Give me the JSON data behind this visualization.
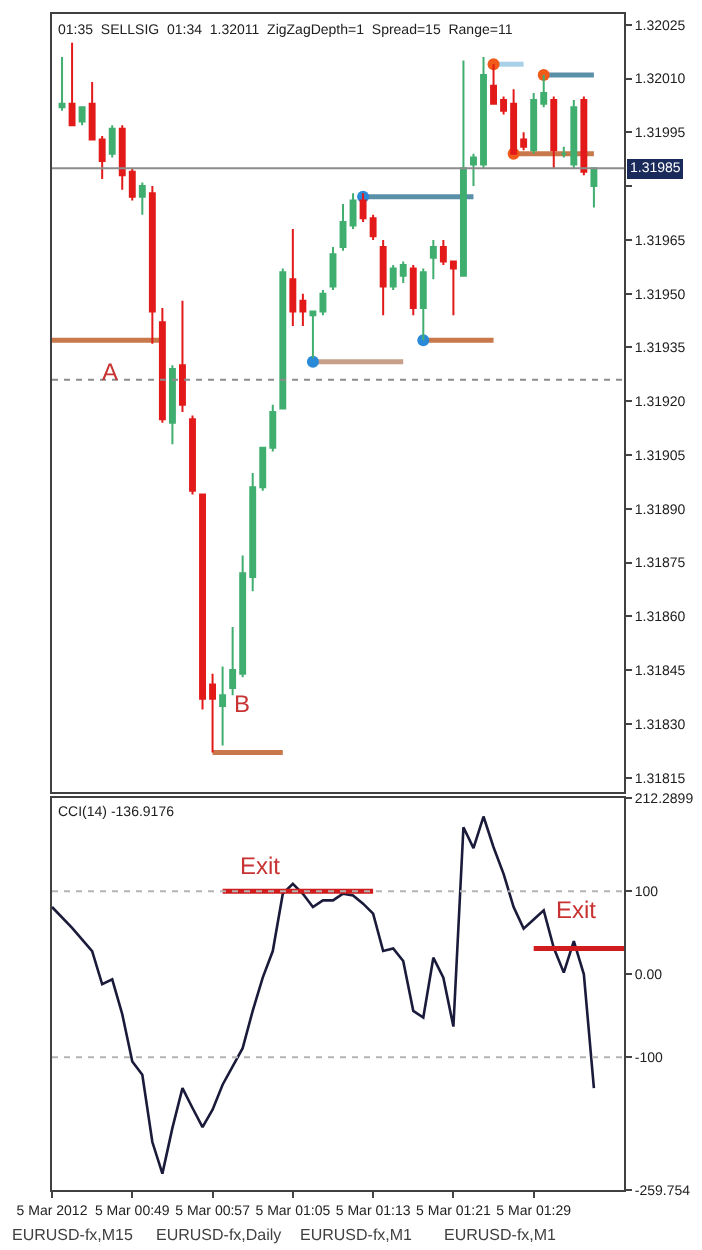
{
  "chart_data": [
    {
      "type": "candlestick",
      "title": "01:35  SELLSIG  01:34  1.32011  ZigZagDepth=1  Spread=15  Range=11",
      "series": [
        {
          "x": [
            "2012-03-05T00:42",
            "2012-03-05T00:43",
            "2012-03-05T00:44",
            "2012-03-05T00:45",
            "2012-03-05T00:46",
            "2012-03-05T00:47",
            "2012-03-05T00:48",
            "2012-03-05T00:49",
            "2012-03-05T00:50",
            "2012-03-05T00:51",
            "2012-03-05T00:52",
            "2012-03-05T00:53",
            "2012-03-05T00:54",
            "2012-03-05T00:55",
            "2012-03-05T00:56",
            "2012-03-05T00:57",
            "2012-03-05T00:58",
            "2012-03-05T00:59",
            "2012-03-05T01:00",
            "2012-03-05T01:01",
            "2012-03-05T01:02",
            "2012-03-05T01:03",
            "2012-03-05T01:04",
            "2012-03-05T01:05",
            "2012-03-05T01:06",
            "2012-03-05T01:07",
            "2012-03-05T01:08",
            "2012-03-05T01:09",
            "2012-03-05T01:10",
            "2012-03-05T01:11",
            "2012-03-05T01:12",
            "2012-03-05T01:13",
            "2012-03-05T01:14",
            "2012-03-05T01:15",
            "2012-03-05T01:16",
            "2012-03-05T01:17",
            "2012-03-05T01:18",
            "2012-03-05T01:19",
            "2012-03-05T01:20",
            "2012-03-05T01:21",
            "2012-03-05T01:22",
            "2012-03-05T01:23",
            "2012-03-05T01:24",
            "2012-03-05T01:25",
            "2012-03-05T01:26",
            "2012-03-05T01:27",
            "2012-03-05T01:28",
            "2012-03-05T01:29",
            "2012-03-05T01:30",
            "2012-03-05T01:31",
            "2012-03-05T01:32",
            "2012-03-05T01:33",
            "2012-03-05T01:34",
            "2012-03-05T01:35"
          ],
          "ohlc": [
            [
              1.32002,
              1.32016,
              1.32001,
              1.32003
            ],
            [
              1.32003,
              1.3202,
              1.31997,
              1.31997
            ],
            [
              1.31998,
              1.32002,
              1.31997,
              1.32002
            ],
            [
              1.32003,
              1.32009,
              1.31993,
              1.31993
            ],
            [
              1.31993,
              1.31994,
              1.31982,
              1.31987
            ],
            [
              1.31989,
              1.31997,
              1.31988,
              1.31996
            ],
            [
              1.31996,
              1.31997,
              1.31979,
              1.31983
            ],
            [
              1.31984,
              1.31985,
              1.31976,
              1.31977
            ],
            [
              1.31977,
              1.31981,
              1.31972,
              1.3198
            ],
            [
              1.31978,
              1.3198,
              1.31936,
              1.31945
            ],
            [
              1.31942,
              1.31946,
              1.31914,
              1.31915
            ],
            [
              1.31914,
              1.3193,
              1.31908,
              1.31929
            ],
            [
              1.3193,
              1.31948,
              1.31917,
              1.31919
            ],
            [
              1.31915,
              1.31916,
              1.31894,
              1.31895
            ],
            [
              1.31894,
              1.31894,
              1.31834,
              1.31837
            ],
            [
              1.31841,
              1.31844,
              1.31822,
              1.31837
            ],
            [
              1.31835,
              1.31846,
              1.31824,
              1.31838
            ],
            [
              1.3184,
              1.31857,
              1.31838,
              1.31845
            ],
            [
              1.31844,
              1.31877,
              1.31843,
              1.31872
            ],
            [
              1.31871,
              1.319,
              1.31867,
              1.31896
            ],
            [
              1.31896,
              1.31907,
              1.31895,
              1.31907
            ],
            [
              1.31907,
              1.31919,
              1.31906,
              1.31917
            ],
            [
              1.31918,
              1.31957,
              1.31918,
              1.31956
            ],
            [
              1.31954,
              1.31968,
              1.31941,
              1.31945
            ],
            [
              1.31948,
              1.3195,
              1.31941,
              1.31945
            ],
            [
              1.31944,
              1.31945,
              1.31932,
              1.31945
            ],
            [
              1.31945,
              1.31951,
              1.31944,
              1.3195
            ],
            [
              1.31952,
              1.31963,
              1.31951,
              1.31961
            ],
            [
              1.31963,
              1.31975,
              1.31962,
              1.3197
            ],
            [
              1.31969,
              1.31978,
              1.31968,
              1.31976
            ],
            [
              1.31976,
              1.31978,
              1.3197,
              1.31971
            ],
            [
              1.31971,
              1.31972,
              1.31965,
              1.31966
            ],
            [
              1.31963,
              1.31965,
              1.31944,
              1.31952
            ],
            [
              1.31952,
              1.31958,
              1.31951,
              1.31957
            ],
            [
              1.31955,
              1.31959,
              1.31953,
              1.31958
            ],
            [
              1.31957,
              1.31958,
              1.31944,
              1.31946
            ],
            [
              1.31946,
              1.31957,
              1.31937,
              1.31956
            ],
            [
              1.3196,
              1.31965,
              1.31954,
              1.31963
            ],
            [
              1.31963,
              1.31965,
              1.31958,
              1.31959
            ],
            [
              1.31959,
              1.31959,
              1.31944,
              1.31957
            ],
            [
              1.31955,
              1.32015,
              1.31955,
              1.31985
            ],
            [
              1.31986,
              1.31989,
              1.3198,
              1.31988
            ],
            [
              1.31986,
              1.32016,
              1.31985,
              1.32011
            ],
            [
              1.32008,
              1.32014,
              1.32003,
              1.32003
            ],
            [
              1.32004,
              1.32005,
              1.32,
              1.32001
            ],
            [
              1.32003,
              1.32007,
              1.31989,
              1.31989
            ],
            [
              1.31993,
              1.31995,
              1.3199,
              1.31991
            ],
            [
              1.3199,
              1.32006,
              1.31989,
              1.32004
            ],
            [
              1.32003,
              1.32011,
              1.32002,
              1.32006
            ],
            [
              1.32004,
              1.32005,
              1.31985,
              1.3199
            ],
            [
              1.31989,
              1.31991,
              1.31988,
              1.31989
            ],
            [
              1.31986,
              1.32004,
              1.31985,
              1.32002
            ],
            [
              1.32004,
              1.32005,
              1.31983,
              1.31984
            ],
            [
              1.3198,
              1.31985,
              1.31974,
              1.31985
            ]
          ],
          "colors": [
            "#3fae6f",
            "#e31a1a",
            "#3fae6f",
            "#e31a1a",
            "#e31a1a",
            "#3fae6f",
            "#e31a1a",
            "#e31a1a",
            "#3fae6f",
            "#e31a1a",
            "#e31a1a",
            "#3fae6f",
            "#e31a1a",
            "#e31a1a",
            "#e31a1a",
            "#e31a1a",
            "#3fae6f",
            "#3fae6f",
            "#3fae6f",
            "#3fae6f",
            "#3fae6f",
            "#3fae6f",
            "#3fae6f",
            "#e31a1a",
            "#e31a1a",
            "#3fae6f",
            "#3fae6f",
            "#3fae6f",
            "#3fae6f",
            "#3fae6f",
            "#e31a1a",
            "#e31a1a",
            "#e31a1a",
            "#3fae6f",
            "#3fae6f",
            "#e31a1a",
            "#3fae6f",
            "#3fae6f",
            "#e31a1a",
            "#e31a1a",
            "#3fae6f",
            "#3fae6f",
            "#3fae6f",
            "#e31a1a",
            "#e31a1a",
            "#e31a1a",
            "#e31a1a",
            "#3fae6f",
            "#3fae6f",
            "#e31a1a",
            "#3fae6f",
            "#3fae6f",
            "#e31a1a",
            "#3fae6f"
          ]
        },
        {
          "type": "line",
          "color": "#c8784a",
          "x": [
            "2012-03-05T00:41",
            "2012-03-05T00:52"
          ],
          "values": [
            1.31937,
            1.31937
          ]
        },
        {
          "type": "line",
          "color": "#c8784a",
          "x": [
            "2012-03-05T00:57",
            "2012-03-05T01:04"
          ],
          "values": [
            1.31822,
            1.31822
          ]
        },
        {
          "type": "line",
          "color": "#c8a08a",
          "x": [
            "2012-03-05T01:07",
            "2012-03-05T01:16"
          ],
          "values": [
            1.31931,
            1.31931
          ]
        },
        {
          "type": "line",
          "color": "#c8784a",
          "x": [
            "2012-03-05T01:18",
            "2012-03-05T01:25"
          ],
          "values": [
            1.31937,
            1.31937
          ]
        },
        {
          "type": "line",
          "color": "#5a8fa8",
          "x": [
            "2012-03-05T01:12",
            "2012-03-05T01:23"
          ],
          "values": [
            1.31977,
            1.31977
          ]
        },
        {
          "type": "line",
          "color": "#a8d0e8",
          "x": [
            "2012-03-05T01:25",
            "2012-03-05T01:28"
          ],
          "values": [
            1.32014,
            1.32014
          ]
        },
        {
          "type": "line",
          "color": "#5a8fa8",
          "x": [
            "2012-03-05T01:30",
            "2012-03-05T01:35"
          ],
          "values": [
            1.32011,
            1.32011
          ]
        },
        {
          "type": "line",
          "color": "#c8784a",
          "x": [
            "2012-03-05T01:27",
            "2012-03-05T01:35"
          ],
          "values": [
            1.31989,
            1.31989
          ]
        },
        {
          "type": "scatter",
          "color": "#2a8ad8",
          "x": [
            "2012-03-05T01:07",
            "2012-03-05T01:18",
            "2012-03-05T01:12"
          ],
          "values": [
            1.31931,
            1.31937,
            1.31977
          ]
        },
        {
          "type": "scatter",
          "color": "#f05a1a",
          "x": [
            "2012-03-05T01:25",
            "2012-03-05T01:27",
            "2012-03-05T01:30"
          ],
          "values": [
            1.32014,
            1.31989,
            1.32011
          ]
        }
      ],
      "ref_lines": [
        {
          "axis": "y",
          "value": 1.31985,
          "label": "1.31985",
          "color": "#8c8c8c",
          "line_style": "solid"
        },
        {
          "axis": "y",
          "value": 1.31926,
          "color": "#8c8c8c",
          "line_style": "dotted"
        }
      ],
      "annotations": [
        "A",
        "B"
      ],
      "xlim": [
        "2012-03-05T00:41",
        "2012-03-05T01:38"
      ],
      "ylim": [
        1.31811,
        1.32028
      ],
      "yticks": [
        1.32025,
        {
          "value": 1.3201,
          "label": "1.32010"
        },
        1.31995,
        {
          "value": 1.3198,
          "label": null
        },
        1.31965,
        {
          "value": 1.3195,
          "label": "1.31950"
        },
        1.31935,
        {
          "value": 1.3192,
          "label": "1.31920"
        },
        1.31905,
        {
          "value": 1.3189,
          "label": "1.31890"
        },
        1.31875,
        {
          "value": 1.3186,
          "label": "1.31860"
        },
        1.31845,
        {
          "value": 1.3183,
          "label": "1.31830"
        },
        1.31815
      ],
      "tick_labels": "y"
    },
    {
      "type": "line",
      "title": "CCI(14) -136.9176",
      "series": [
        {
          "color": "#1a1a3a",
          "x": [
            "2012-03-05T00:41",
            "2012-03-05T00:43",
            "2012-03-05T00:45",
            "2012-03-05T00:46",
            "2012-03-05T00:47",
            "2012-03-05T00:48",
            "2012-03-05T00:49",
            "2012-03-05T00:50",
            "2012-03-05T00:51",
            "2012-03-05T00:52",
            "2012-03-05T00:53",
            "2012-03-05T00:54",
            "2012-03-05T00:55",
            "2012-03-05T00:56",
            "2012-03-05T00:57",
            "2012-03-05T00:58",
            "2012-03-05T01:00",
            "2012-03-05T01:01",
            "2012-03-05T01:02",
            "2012-03-05T01:03",
            "2012-03-05T01:04",
            "2012-03-05T01:05",
            "2012-03-05T01:06",
            "2012-03-05T01:07",
            "2012-03-05T01:08",
            "2012-03-05T01:09",
            "2012-03-05T01:10",
            "2012-03-05T01:11",
            "2012-03-05T01:12",
            "2012-03-05T01:13",
            "2012-03-05T01:14",
            "2012-03-05T01:15",
            "2012-03-05T01:16",
            "2012-03-05T01:17",
            "2012-03-05T01:18",
            "2012-03-05T01:19",
            "2012-03-05T01:20",
            "2012-03-05T01:21",
            "2012-03-05T01:22",
            "2012-03-05T01:23",
            "2012-03-05T01:24",
            "2012-03-05T01:25",
            "2012-03-05T01:26",
            "2012-03-05T01:27",
            "2012-03-05T01:28",
            "2012-03-05T01:29",
            "2012-03-05T01:30",
            "2012-03-05T01:31",
            "2012-03-05T01:32",
            "2012-03-05T01:33",
            "2012-03-05T01:34",
            "2012-03-05T01:35"
          ],
          "values": [
            81,
            56,
            28,
            -12,
            -6,
            -48,
            -105,
            -121,
            -202,
            -240,
            -185,
            -137,
            -161,
            -184,
            -163,
            -133,
            -89,
            -44,
            -4,
            28,
            97,
            109,
            97,
            81,
            89,
            89,
            97,
            95,
            85,
            73,
            28,
            31,
            16,
            -44,
            -52,
            20,
            -4,
            -63,
            177,
            152,
            190,
            153,
            121,
            81,
            55,
            66,
            77,
            32,
            2,
            40,
            0,
            -137
          ]
        },
        {
          "type": "line",
          "color": "#d01c1c",
          "x": [
            "2012-03-05T00:58",
            "2012-03-05T01:13"
          ],
          "values": [
            100,
            100
          ]
        },
        {
          "type": "line",
          "color": "#d01c1c",
          "x": [
            "2012-03-05T01:29",
            "2012-03-05T01:38"
          ],
          "values": [
            31,
            31
          ]
        }
      ],
      "ref_lines": [
        {
          "axis": "y",
          "value": 100,
          "color": "#b4b4b4",
          "line_style": "dotted"
        },
        {
          "axis": "y",
          "value": -100,
          "color": "#b4b4b4",
          "line_style": "dotted"
        }
      ],
      "annotations": [
        "Exit",
        "Exit",
        "EURUSD-fx,M15",
        "EURUSD-fx,Daily",
        "EURUSD-fx,M1",
        "EURUSD-fx,M1"
      ],
      "xlim": [
        "2012-03-05T00:41",
        "2012-03-05T01:38"
      ],
      "xticks": [
        {
          "value": "2012-03-05T00:41",
          "label": "5 Mar 2012"
        },
        {
          "value": "2012-03-05T00:49",
          "label": "5 Mar 00:49"
        },
        {
          "value": "2012-03-05T00:57",
          "label": "5 Mar 00:57"
        },
        {
          "value": "2012-03-05T01:05",
          "label": "5 Mar 01:05"
        },
        {
          "value": "2012-03-05T01:13",
          "label": "5 Mar 01:13"
        },
        {
          "value": "2012-03-05T01:21",
          "label": "5 Mar 01:21"
        },
        {
          "value": "2012-03-05T01:29",
          "label": "5 Mar 01:29"
        }
      ],
      "ylim": [
        -259.754,
        212.2899
      ],
      "yticks": [
        212.2899,
        100,
        {
          "value": 0,
          "label": "0.00"
        },
        -100,
        -259.754
      ]
    }
  ]
}
